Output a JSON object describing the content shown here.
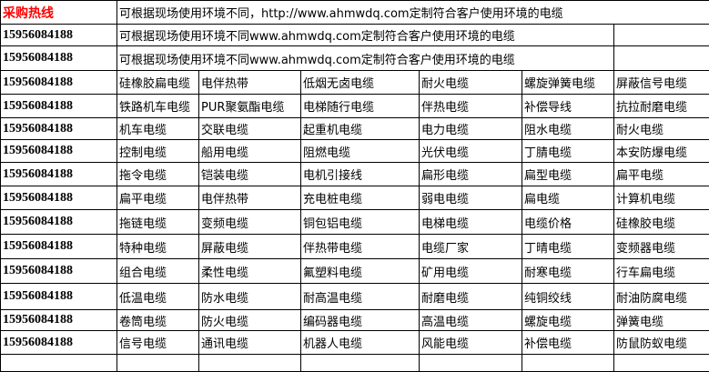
{
  "header": {
    "hotline_label": "采购热线",
    "banner_text": "可根据现场使用环境不同，http://www.ahmwdq.com定制符合客户使用环境的电缆",
    "hotline_color": "#ff0000"
  },
  "info_rows": [
    {
      "phone": "15956084188",
      "text": "可根据现场使用环境不同www.ahmwdq.com定制符合客户使用环境的电缆",
      "extra": ""
    },
    {
      "phone": "15956084188",
      "text": "可根据现场使用环境不同www.ahmwdq.com定制符合客户使用环境的电缆",
      "extra": ""
    }
  ],
  "product_rows": [
    {
      "phone": "15956084188",
      "items": [
        "硅橡胶扁电缆",
        "电伴热带",
        "低烟无卤电缆",
        "耐火电缆",
        "螺旋弹簧电缆",
        "屏蔽信号电缆"
      ]
    },
    {
      "phone": "15956084188",
      "items": [
        "铁路机车电缆",
        "PUR聚氨酯电缆",
        "电梯随行电缆",
        "伴热电缆",
        "补偿导线",
        "抗拉耐磨电缆"
      ]
    },
    {
      "phone": "15956084188",
      "items": [
        "机车电缆",
        "交联电缆",
        "起重机电缆",
        "电力电缆",
        "阻水电缆",
        "耐火电缆"
      ]
    },
    {
      "phone": "15956084188",
      "items": [
        "控制电缆",
        "船用电缆",
        "阻燃电缆",
        "光伏电缆",
        "丁腈电缆",
        "本安防爆电缆"
      ]
    },
    {
      "phone": "15956084188",
      "items": [
        "拖令电缆",
        "铠装电缆",
        "电机引接线",
        "扁形电缆",
        "扁型电缆",
        "扁平电缆"
      ]
    },
    {
      "phone": "15956084188",
      "items": [
        "扁平电缆",
        "电伴热带",
        "充电桩电缆",
        "弱电电缆",
        "扁电缆",
        "计算机电缆"
      ]
    },
    {
      "phone": "15956084188",
      "items": [
        "拖链电缆",
        "变频电缆",
        "铜包铝电缆",
        "电梯电缆",
        "电缆价格",
        "硅橡胶电缆"
      ]
    },
    {
      "phone": "15956084188",
      "items": [
        "特种电缆",
        "屏蔽电缆",
        "伴热带电缆",
        "电缆厂家",
        "丁晴电缆",
        "变频器电缆"
      ]
    },
    {
      "phone": "15956084188",
      "items": [
        "组合电缆",
        "柔性电缆",
        "氟塑料电缆",
        "矿用电缆",
        "耐寒电缆",
        "行车扁电缆"
      ]
    },
    {
      "phone": "15956084188",
      "items": [
        "低温电缆",
        "防水电缆",
        "耐高温电缆",
        "耐磨电缆",
        "纯铜绞线",
        "耐油防腐电缆"
      ]
    },
    {
      "phone": "15956084188",
      "items": [
        "卷筒电缆",
        "防火电缆",
        "编码器电缆",
        "高温电缆",
        "螺旋电缆",
        "弹簧电缆"
      ]
    },
    {
      "phone": "15956084188",
      "items": [
        "信号电缆",
        "通讯电缆",
        "机器人电缆",
        "风能电缆",
        "补偿电缆",
        "防鼠防蚁电缆"
      ]
    }
  ]
}
